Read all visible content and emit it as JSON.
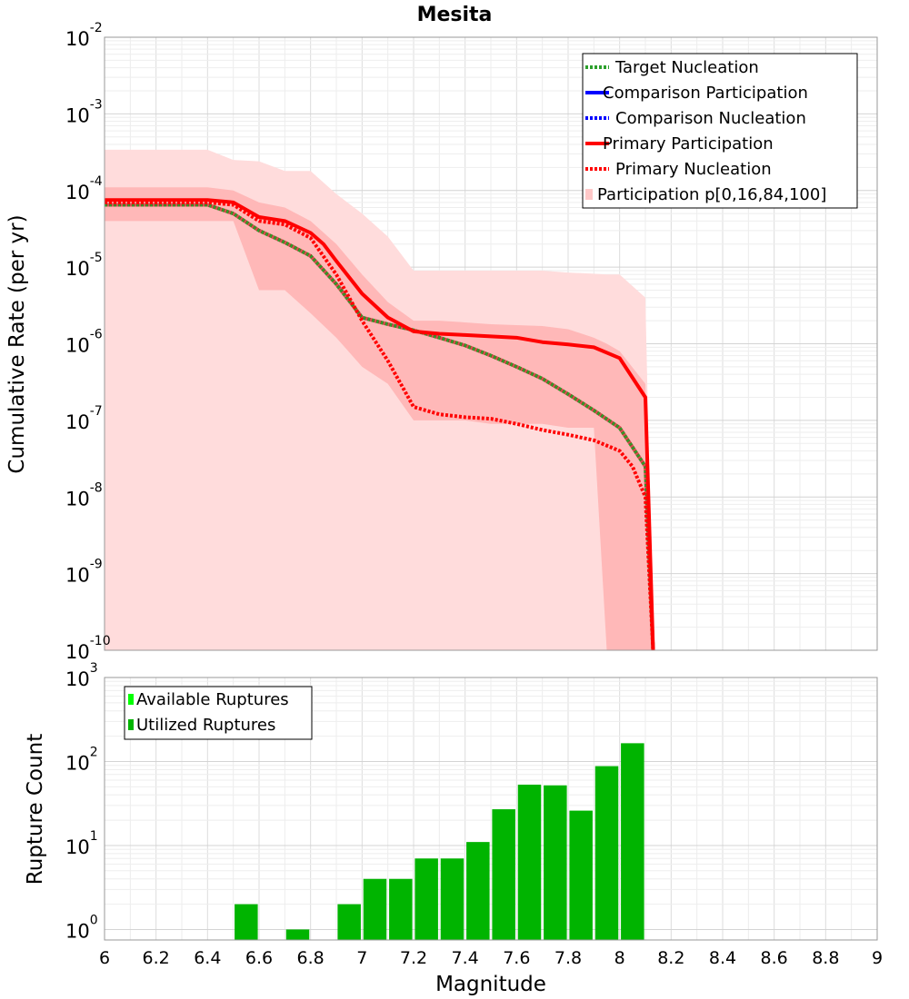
{
  "chart_data": [
    {
      "type": "line",
      "title": "Mesita",
      "xlabel": "",
      "ylabel": "Cumulative Rate (per yr)",
      "xlim": [
        6,
        9
      ],
      "ylim": [
        1e-10,
        0.01
      ],
      "yscale": "log",
      "ytick_exponents": [
        "-10",
        "-9",
        "-8",
        "-7",
        "-6",
        "-5",
        "-4",
        "-3",
        "-2"
      ],
      "legend_position": "top-right",
      "legend": [
        {
          "label": "Target Nucleation",
          "color": "#2ca02c",
          "style": "dotted"
        },
        {
          "label": "Comparison Participation",
          "color": "#0000ff",
          "style": "solid"
        },
        {
          "label": "Comparison Nucleation",
          "color": "#0000ff",
          "style": "dotted"
        },
        {
          "label": "Primary Participation",
          "color": "#ff0000",
          "style": "solid"
        },
        {
          "label": "Primary Nucleation",
          "color": "#ff0000",
          "style": "dotted"
        },
        {
          "label": "Participation p[0,16,84,100]",
          "color": "#ffc8c8",
          "style": "band"
        }
      ],
      "series": [
        {
          "name": "Target Nucleation",
          "color": "#2ca02c",
          "overlay_color": "#b30000",
          "style": "dotted",
          "x": [
            6.0,
            6.4,
            6.5,
            6.6,
            6.7,
            6.8,
            6.9,
            7.0,
            7.1,
            7.2,
            7.3,
            7.4,
            7.5,
            7.6,
            7.7,
            7.8,
            7.9,
            8.0,
            8.1,
            8.13
          ],
          "y": [
            6.5e-05,
            6.5e-05,
            5e-05,
            3e-05,
            2.1e-05,
            1.4e-05,
            6e-06,
            2.2e-06,
            1.8e-06,
            1.5e-06,
            1.2e-06,
            9.5e-07,
            7e-07,
            5e-07,
            3.5e-07,
            2.2e-07,
            1.35e-07,
            8e-08,
            2.5e-08,
            1e-10
          ]
        },
        {
          "name": "Primary Participation",
          "color": "#ff0000",
          "style": "solid",
          "x": [
            6.0,
            6.4,
            6.5,
            6.6,
            6.7,
            6.8,
            6.85,
            6.9,
            7.0,
            7.1,
            7.2,
            7.3,
            7.4,
            7.5,
            7.6,
            7.7,
            7.8,
            7.9,
            8.0,
            8.1,
            8.13
          ],
          "y": [
            7.5e-05,
            7.5e-05,
            7e-05,
            4.5e-05,
            4e-05,
            2.8e-05,
            2e-05,
            1.2e-05,
            4.5e-06,
            2.2e-06,
            1.45e-06,
            1.35e-06,
            1.3e-06,
            1.25e-06,
            1.2e-06,
            1.05e-06,
            9.8e-07,
            9e-07,
            6.5e-07,
            2e-07,
            1e-10
          ]
        },
        {
          "name": "Primary Nucleation",
          "color": "#ff0000",
          "style": "dotted",
          "x": [
            6.0,
            6.4,
            6.5,
            6.6,
            6.7,
            6.8,
            6.9,
            7.0,
            7.1,
            7.2,
            7.3,
            7.4,
            7.5,
            7.6,
            7.7,
            7.8,
            7.9,
            8.0,
            8.05,
            8.1,
            8.13
          ],
          "y": [
            7e-05,
            7e-05,
            6.5e-05,
            4e-05,
            3.6e-05,
            2.4e-05,
            8e-06,
            2e-06,
            6e-07,
            1.5e-07,
            1.2e-07,
            1.1e-07,
            1.05e-07,
            9e-08,
            7.5e-08,
            6.5e-08,
            5.5e-08,
            4e-08,
            2.5e-08,
            1e-08,
            1e-10
          ]
        }
      ],
      "bands": [
        {
          "name": "Participation p[0,100]",
          "color": "#ffdcdc",
          "x": [
            6.0,
            6.4,
            6.5,
            6.6,
            6.7,
            6.8,
            6.9,
            7.0,
            7.1,
            7.2,
            7.3,
            7.4,
            7.5,
            7.6,
            7.7,
            7.8,
            7.9,
            7.95,
            8.0,
            8.1,
            8.13
          ],
          "upper": [
            0.00034,
            0.00034,
            0.00025,
            0.00024,
            0.00018,
            0.00018,
            9e-05,
            5e-05,
            2.5e-05,
            9e-06,
            9e-06,
            9e-06,
            9e-06,
            9e-06,
            9e-06,
            8.5e-06,
            8.2e-06,
            8e-06,
            8e-06,
            4e-06,
            1e-10
          ],
          "lower": [
            1e-10,
            1e-10,
            1e-10,
            1e-10,
            1e-10,
            1e-10,
            1e-10,
            1e-10,
            1e-10,
            1e-10,
            1e-10,
            1e-10,
            1e-10,
            1e-10,
            1e-10,
            1e-10,
            1e-10,
            1e-10,
            1e-10,
            1e-10,
            1e-10
          ]
        },
        {
          "name": "Participation p[16,84]",
          "color": "#ffb8b8",
          "x": [
            6.0,
            6.4,
            6.5,
            6.6,
            6.7,
            6.8,
            6.9,
            7.0,
            7.1,
            7.2,
            7.3,
            7.4,
            7.5,
            7.6,
            7.7,
            7.8,
            7.9,
            7.95,
            8.0,
            8.1,
            8.13
          ],
          "upper": [
            0.00011,
            0.00011,
            0.0001,
            7e-05,
            6e-05,
            4e-05,
            2e-05,
            8e-06,
            3.5e-06,
            2e-06,
            2e-06,
            1.9e-06,
            1.8e-06,
            1.75e-06,
            1.7e-06,
            1.55e-06,
            1.2e-06,
            1e-06,
            8e-07,
            3e-07,
            1e-10
          ],
          "lower": [
            4e-05,
            4e-05,
            4e-05,
            5e-06,
            5e-06,
            2.5e-06,
            1.2e-06,
            5e-07,
            3e-07,
            1e-07,
            1e-07,
            1e-07,
            9e-08,
            9e-08,
            9e-08,
            8e-08,
            8e-08,
            1e-10,
            1e-10,
            1e-10,
            1e-10
          ]
        }
      ]
    },
    {
      "type": "bar",
      "title": "",
      "xlabel": "Magnitude",
      "ylabel": "Rupture Count",
      "xlim": [
        6,
        9
      ],
      "ylim": [
        0.75,
        1000
      ],
      "yscale": "log",
      "ytick_exponents": [
        "0",
        "1",
        "2",
        "3"
      ],
      "xticks": [
        "6",
        "6.2",
        "6.4",
        "6.6",
        "6.8",
        "7",
        "7.2",
        "7.4",
        "7.6",
        "7.8",
        "8",
        "8.2",
        "8.4",
        "8.6",
        "8.8",
        "9"
      ],
      "legend_position": "top-left",
      "legend": [
        {
          "label": "Available Ruptures",
          "color": "#00ff00"
        },
        {
          "label": "Utilized Ruptures",
          "color": "#00b400"
        }
      ],
      "bar_color": "#00b400",
      "bar_width": 0.09,
      "x": [
        6.55,
        6.75,
        6.95,
        7.05,
        7.15,
        7.25,
        7.35,
        7.45,
        7.55,
        7.65,
        7.75,
        7.85,
        7.95,
        8.05
      ],
      "values": [
        2,
        1,
        2,
        4,
        4,
        7,
        7,
        11,
        27,
        53,
        52,
        26,
        88,
        165
      ]
    }
  ]
}
